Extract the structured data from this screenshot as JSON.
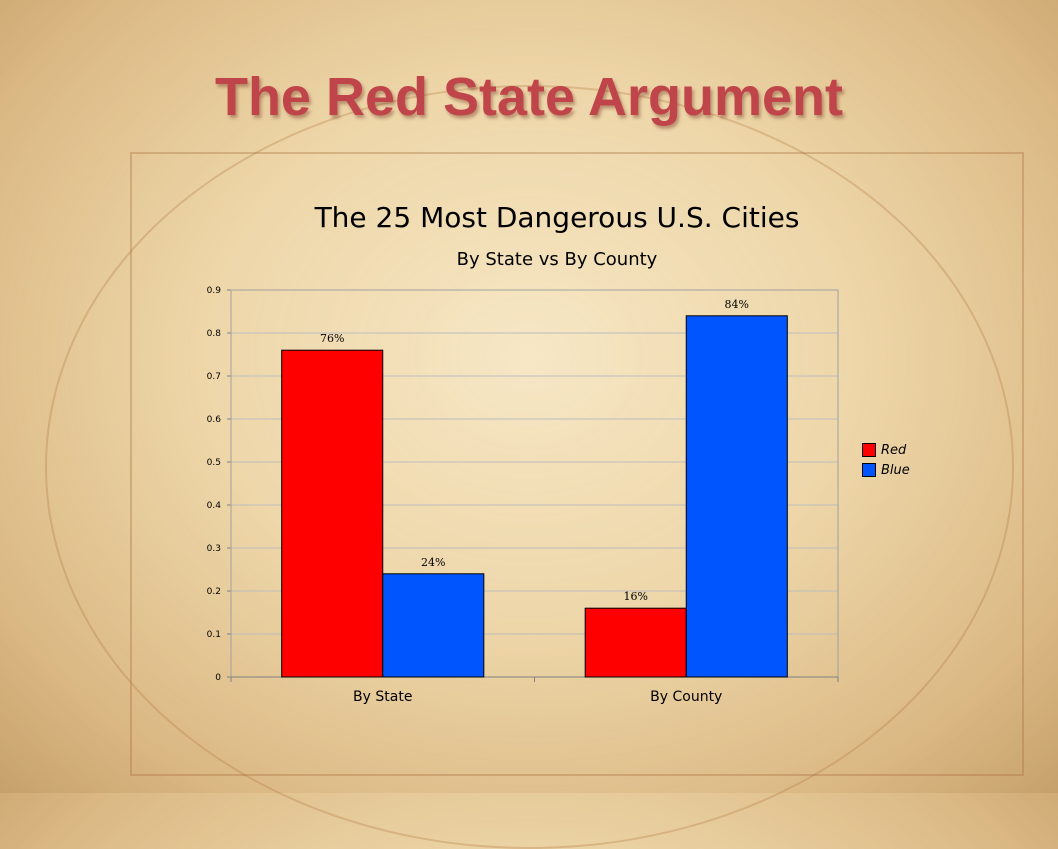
{
  "slide": {
    "title": "The Red State Argument"
  },
  "chart_data": {
    "type": "bar",
    "title": "The 25 Most Dangerous U.S. Cities",
    "subtitle": "By State vs By County",
    "categories": [
      "By State",
      "By County"
    ],
    "series": [
      {
        "name": "Red",
        "values": [
          0.76,
          0.16
        ],
        "labels": [
          "76%",
          "16%"
        ],
        "color": "#ff0000"
      },
      {
        "name": "Blue",
        "values": [
          0.24,
          0.84
        ],
        "labels": [
          "24%",
          "84%"
        ],
        "color": "#0055ff"
      }
    ],
    "ylim": [
      0,
      0.9
    ],
    "yticks": [
      "0",
      "0.1",
      "0.2",
      "0.3",
      "0.4",
      "0.5",
      "0.6",
      "0.7",
      "0.8",
      "0.9"
    ],
    "grid": true,
    "legend_position": "right"
  }
}
